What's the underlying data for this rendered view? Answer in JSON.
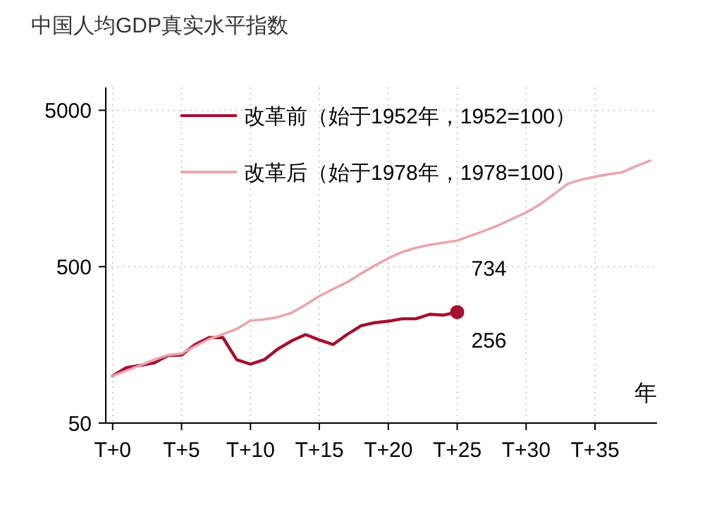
{
  "chart_data": {
    "type": "line",
    "title": "中国人均GDP真实水平指数",
    "xlabel": "年",
    "categories": [
      "T+0",
      null,
      null,
      null,
      null,
      "T+5",
      null,
      null,
      null,
      null,
      "T+10",
      null,
      null,
      null,
      null,
      "T+15",
      null,
      null,
      null,
      null,
      "T+20",
      null,
      null,
      null,
      null,
      "T+25",
      null,
      null,
      null,
      null,
      "T+30",
      null,
      null,
      null,
      null,
      "T+35",
      null,
      null,
      null,
      null
    ],
    "series": [
      {
        "name": "改革前（始于1952年，1952=100）",
        "color": "#a5102e",
        "values": [
          100,
          113,
          117,
          121,
          135,
          136,
          159,
          176,
          176,
          127,
          119,
          127,
          149,
          168,
          184,
          170,
          159,
          184,
          209,
          219,
          224,
          232,
          232,
          248,
          245,
          256,
          null,
          null,
          null,
          null,
          null,
          null,
          null,
          null,
          null,
          null,
          null,
          null,
          null,
          null
        ]
      },
      {
        "name": "改革后（始于1978年，1978=100）",
        "color": "#e8a7ac",
        "values": [
          100,
          108,
          117,
          127,
          136,
          139,
          155,
          172,
          185,
          200,
          226,
          230,
          238,
          254,
          285,
          324,
          360,
          397,
          450,
          507,
          565,
          620,
          660,
          690,
          712,
          734,
          790,
          850,
          920,
          1010,
          1110,
          1250,
          1450,
          1690,
          1800,
          1880,
          1950,
          2010,
          2200,
          2380
        ]
      },
      {
        "type": "scatter",
        "marker": "circle",
        "color": "#a5102e",
        "values": [
          null,
          null,
          null,
          null,
          null,
          null,
          null,
          null,
          null,
          null,
          null,
          null,
          null,
          null,
          null,
          null,
          null,
          null,
          null,
          null,
          null,
          null,
          null,
          null,
          null,
          256,
          null,
          null,
          null,
          null,
          null,
          null,
          null,
          null,
          null,
          null,
          null,
          null,
          null,
          null
        ]
      }
    ],
    "annotations": [
      {
        "text": "256",
        "x": "T+25",
        "y": 256
      },
      {
        "text": "734",
        "x": "T+25",
        "y": 734
      }
    ],
    "log": true,
    "ylim": [
      50,
      7000
    ],
    "yticks": [
      50,
      500,
      5000
    ],
    "grid": true,
    "legend": "top left",
    "line_style": "solid"
  }
}
